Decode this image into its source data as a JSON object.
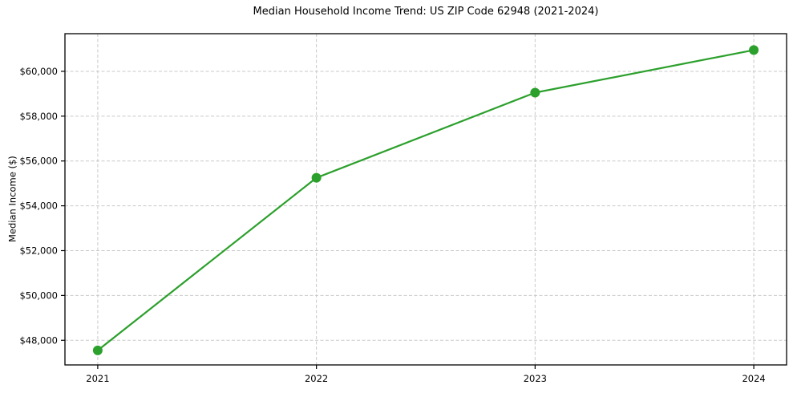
{
  "chart_data": {
    "type": "line",
    "title": "Median Household Income Trend: US ZIP Code 62948 (2021-2024)",
    "xlabel": "",
    "ylabel": "Median Income ($)",
    "x": [
      2021,
      2022,
      2023,
      2024
    ],
    "series": [
      {
        "values": [
          47550,
          55250,
          59050,
          60950
        ],
        "color": "#2ca02c",
        "marker": "circle",
        "line_width": 2.2,
        "marker_radius": 6
      }
    ],
    "xticks": {
      "values": [
        2021,
        2022,
        2023,
        2024
      ],
      "labels": [
        "2021",
        "2022",
        "2023",
        "2024"
      ]
    },
    "yticks": {
      "values": [
        48000,
        50000,
        52000,
        54000,
        56000,
        58000,
        60000
      ],
      "labels": [
        "$48,000",
        "$50,000",
        "$52,000",
        "$54,000",
        "$56,000",
        "$58,000",
        "$60,000"
      ]
    },
    "xlim": [
      2020.85,
      2024.15
    ],
    "ylim": [
      46900,
      61680
    ],
    "grid": {
      "visible": true,
      "style": "dashed",
      "color": "#c9c9c9"
    },
    "legend": "none",
    "colors": {
      "background": "#ffffff",
      "spine": "#000000",
      "text": "#000000",
      "accent": "#2ca02c"
    }
  }
}
